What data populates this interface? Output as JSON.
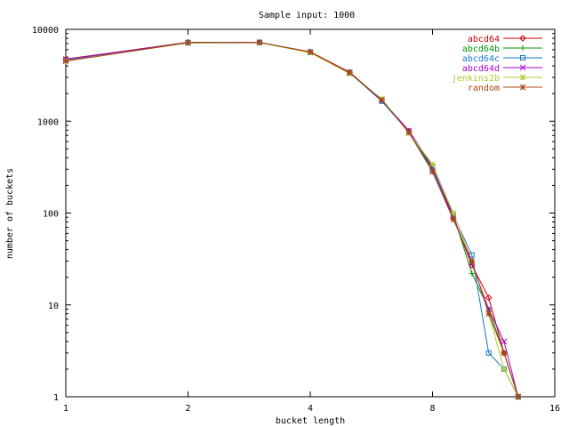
{
  "chart_data": {
    "type": "line",
    "title": "Sample input: 1000",
    "xlabel": "bucket length",
    "ylabel": "number of buckets",
    "x_scale": "log2",
    "y_scale": "log10",
    "xlim": [
      1,
      16
    ],
    "ylim": [
      1,
      10000
    ],
    "x_ticks": [
      1,
      2,
      4,
      8,
      16
    ],
    "x_tick_labels": [
      "1",
      "2",
      "4",
      "8",
      "16"
    ],
    "y_ticks": [
      1,
      10,
      100,
      1000,
      10000
    ],
    "y_tick_labels": [
      "1",
      "10",
      "100",
      "1000",
      "10000"
    ],
    "grid": false,
    "legend_position": "top-right",
    "series": [
      {
        "name": "abcd64",
        "color": "#cc0000",
        "marker": "diamond",
        "points": [
          [
            1,
            4750
          ],
          [
            2,
            7230
          ],
          [
            3,
            7200
          ],
          [
            4,
            5700
          ],
          [
            5,
            3420
          ],
          [
            6,
            1700
          ],
          [
            7,
            780
          ],
          [
            8,
            300
          ],
          [
            9,
            88
          ],
          [
            10,
            27
          ],
          [
            11,
            12
          ],
          [
            12,
            3
          ],
          [
            13,
            1
          ]
        ]
      },
      {
        "name": "abcd64b",
        "color": "#009900",
        "marker": "plus",
        "points": [
          [
            1,
            4700
          ],
          [
            2,
            7200
          ],
          [
            3,
            7180
          ],
          [
            4,
            5600
          ],
          [
            5,
            3380
          ],
          [
            6,
            1720
          ],
          [
            7,
            770
          ],
          [
            8,
            310
          ],
          [
            9,
            95
          ],
          [
            10,
            22
          ],
          [
            11,
            9
          ],
          [
            12,
            3
          ],
          [
            13,
            1
          ]
        ]
      },
      {
        "name": "abcd64c",
        "color": "#1177cc",
        "marker": "square",
        "points": [
          [
            1,
            4600
          ],
          [
            2,
            7180
          ],
          [
            3,
            7220
          ],
          [
            4,
            5650
          ],
          [
            5,
            3350
          ],
          [
            6,
            1650
          ],
          [
            7,
            760
          ],
          [
            8,
            290
          ],
          [
            9,
            95
          ],
          [
            10,
            35
          ],
          [
            11,
            3
          ],
          [
            12,
            2
          ],
          [
            13,
            1
          ]
        ]
      },
      {
        "name": "abcd64d",
        "color": "#aa00cc",
        "marker": "x",
        "points": [
          [
            1,
            4720
          ],
          [
            2,
            7150
          ],
          [
            3,
            7190
          ],
          [
            4,
            5620
          ],
          [
            5,
            3400
          ],
          [
            6,
            1690
          ],
          [
            7,
            790
          ],
          [
            8,
            320
          ],
          [
            9,
            90
          ],
          [
            10,
            28
          ],
          [
            11,
            9
          ],
          [
            12,
            4
          ],
          [
            13,
            1
          ]
        ]
      },
      {
        "name": "jenkins2b",
        "color": "#aacc33",
        "marker": "star",
        "points": [
          [
            1,
            4550
          ],
          [
            2,
            7100
          ],
          [
            3,
            7160
          ],
          [
            4,
            5580
          ],
          [
            5,
            3300
          ],
          [
            6,
            1750
          ],
          [
            7,
            740
          ],
          [
            8,
            340
          ],
          [
            9,
            100
          ],
          [
            10,
            30
          ],
          [
            11,
            8
          ],
          [
            12,
            2
          ],
          [
            13,
            1
          ]
        ]
      },
      {
        "name": "random",
        "color": "#aa4411",
        "marker": "star",
        "points": [
          [
            1,
            4500
          ],
          [
            2,
            7160
          ],
          [
            3,
            7200
          ],
          [
            4,
            5660
          ],
          [
            5,
            3360
          ],
          [
            6,
            1710
          ],
          [
            7,
            750
          ],
          [
            8,
            280
          ],
          [
            9,
            85
          ],
          [
            10,
            30
          ],
          [
            11,
            8
          ],
          [
            12,
            3
          ],
          [
            13,
            1
          ]
        ]
      }
    ]
  }
}
